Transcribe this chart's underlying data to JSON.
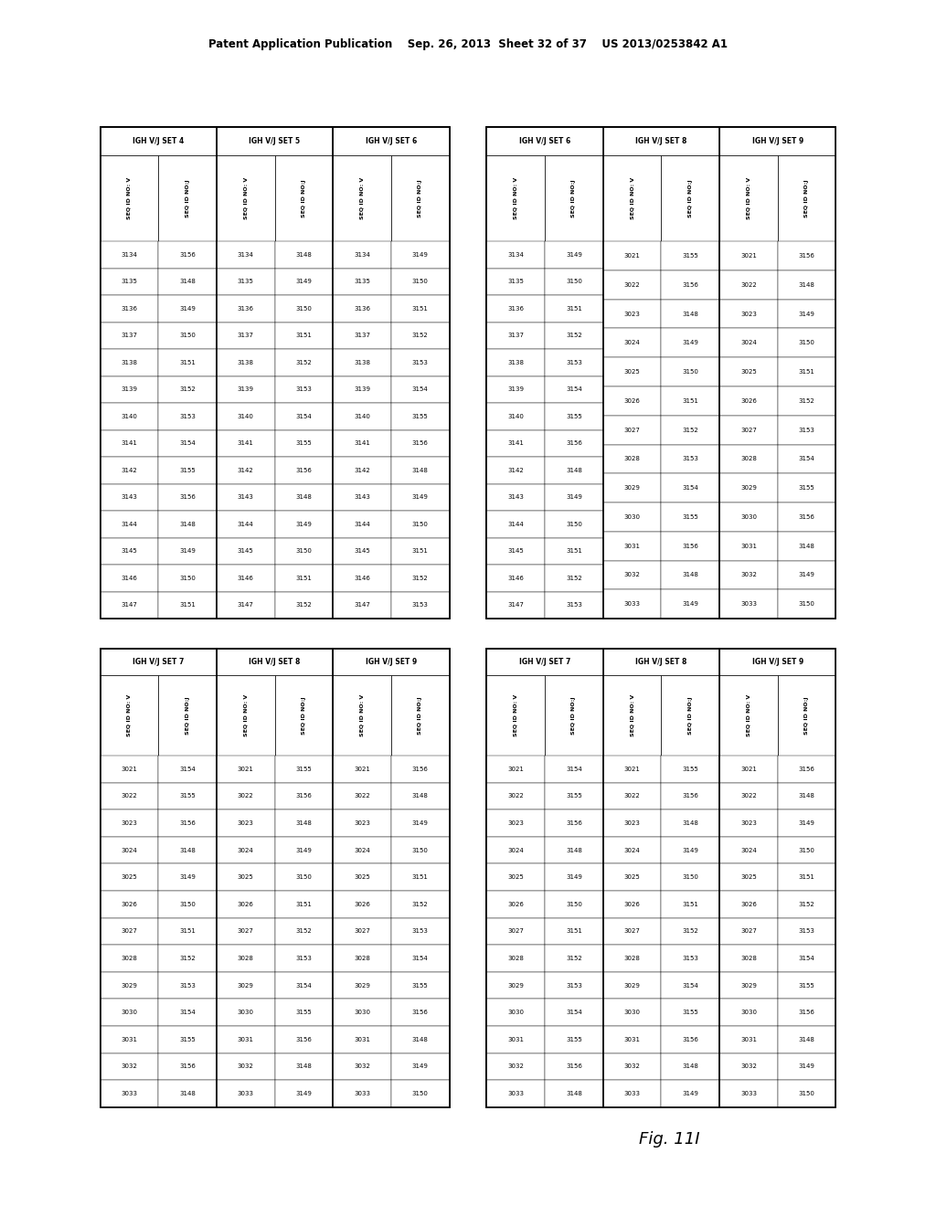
{
  "header_text": "Patent Application Publication    Sep. 26, 2013  Sheet 32 of 37    US 2013/0253842 A1",
  "fig_label": "Fig. 11I",
  "background_color": "#ffffff",
  "tables": [
    {
      "id": "top_left",
      "sets": [
        {
          "title": "IGH V/J SET 4",
          "col1_header": "SEQ ID NO: V",
          "col2_header": "SEQ ID NO:J",
          "col1": [
            3134,
            3135,
            3136,
            3137,
            3138,
            3139,
            3140,
            3141,
            3142,
            3143,
            3144,
            3145,
            3146,
            3147
          ],
          "col2": [
            3156,
            3148,
            3149,
            3150,
            3151,
            3152,
            3153,
            3154,
            3155,
            3156,
            3148,
            3149,
            3150,
            3151
          ]
        },
        {
          "title": "IGH V/J SET 5",
          "col1_header": "SEQ ID NO: V",
          "col2_header": "SEQ ID NO:J",
          "col1": [
            3134,
            3135,
            3136,
            3137,
            3138,
            3139,
            3140,
            3141,
            3142,
            3143,
            3144,
            3145,
            3146,
            3147
          ],
          "col2": [
            3148,
            3149,
            3150,
            3151,
            3152,
            3153,
            3154,
            3155,
            3156,
            3148,
            3149,
            3150,
            3151,
            3152
          ]
        },
        {
          "title": "IGH V/J SET 6",
          "col1_header": "SEQ ID NO: V",
          "col2_header": "SEQ ID NO:J",
          "col1": [
            3134,
            3135,
            3136,
            3137,
            3138,
            3139,
            3140,
            3141,
            3142,
            3143,
            3144,
            3145,
            3146,
            3147
          ],
          "col2": [
            3149,
            3150,
            3151,
            3152,
            3153,
            3154,
            3155,
            3156,
            3148,
            3149,
            3150,
            3151,
            3152,
            3153
          ]
        }
      ],
      "xl": 0.107,
      "yt": 0.895,
      "xr": 0.48,
      "yb": 0.487
    },
    {
      "id": "top_right",
      "sets": [
        {
          "title": "IGH V/J SET 6",
          "col1_header": "SEQ ID NO: V",
          "col2_header": "SEQ ID NO:J",
          "col1": [
            3134,
            3135,
            3136,
            3137,
            3138,
            3139,
            3140,
            3141,
            3142,
            3143,
            3144,
            3145,
            3146,
            3147
          ],
          "col2": [
            3149,
            3150,
            3151,
            3152,
            3153,
            3154,
            3155,
            3156,
            3148,
            3149,
            3150,
            3151,
            3152,
            3153
          ]
        },
        {
          "title": "IGH V/J SET 8",
          "col1_header": "SEQ ID NO: V",
          "col2_header": "SEQ ID NO:J",
          "col1": [
            3021,
            3022,
            3023,
            3024,
            3025,
            3026,
            3027,
            3028,
            3029,
            3030,
            3031,
            3032,
            3033
          ],
          "col2": [
            3155,
            3156,
            3148,
            3149,
            3150,
            3151,
            3152,
            3153,
            3154,
            3155,
            3156,
            3148,
            3149
          ]
        },
        {
          "title": "IGH V/J SET 9",
          "col1_header": "SEQ ID NO: V",
          "col2_header": "SEQ ID NO:J",
          "col1": [
            3021,
            3022,
            3023,
            3024,
            3025,
            3026,
            3027,
            3028,
            3029,
            3030,
            3031,
            3032,
            3033
          ],
          "col2": [
            3156,
            3148,
            3149,
            3150,
            3151,
            3152,
            3153,
            3154,
            3155,
            3156,
            3148,
            3149,
            3150
          ]
        }
      ],
      "xl": 0.52,
      "yt": 0.895,
      "xr": 0.893,
      "yb": 0.487
    },
    {
      "id": "bottom_left",
      "sets": [
        {
          "title": "IGH V/J SET 7",
          "col1_header": "SEQ ID NO: V",
          "col2_header": "SEQ ID NO:J",
          "col1": [
            3021,
            3022,
            3023,
            3024,
            3025,
            3026,
            3027,
            3028,
            3029,
            3030,
            3031,
            3032,
            3033
          ],
          "col2": [
            3154,
            3155,
            3156,
            3148,
            3149,
            3150,
            3151,
            3152,
            3153,
            3154,
            3155,
            3156,
            3148
          ]
        },
        {
          "title": "IGH V/J SET 8",
          "col1_header": "SEQ ID NO: V",
          "col2_header": "SEQ ID NO:J",
          "col1": [
            3021,
            3022,
            3023,
            3024,
            3025,
            3026,
            3027,
            3028,
            3029,
            3030,
            3031,
            3032,
            3033
          ],
          "col2": [
            3155,
            3156,
            3148,
            3149,
            3150,
            3151,
            3152,
            3153,
            3154,
            3155,
            3156,
            3148,
            3149
          ]
        },
        {
          "title": "IGH V/J SET 9",
          "col1_header": "SEQ ID NO: V",
          "col2_header": "SEQ ID NO:J",
          "col1": [
            3021,
            3022,
            3023,
            3024,
            3025,
            3026,
            3027,
            3028,
            3029,
            3030,
            3031,
            3032,
            3033
          ],
          "col2": [
            3156,
            3148,
            3149,
            3150,
            3151,
            3152,
            3153,
            3154,
            3155,
            3156,
            3148,
            3149,
            3150
          ]
        }
      ],
      "xl": 0.107,
      "yt": 0.462,
      "xr": 0.48,
      "yb": 0.082
    },
    {
      "id": "bottom_right",
      "sets": [
        {
          "title": "IGH V/J SET 7",
          "col1_header": "SEQ ID NO: V",
          "col2_header": "SEQ ID NO:J",
          "col1": [
            3021,
            3022,
            3023,
            3024,
            3025,
            3026,
            3027,
            3028,
            3029,
            3030,
            3031,
            3032,
            3033
          ],
          "col2": [
            3154,
            3155,
            3156,
            3148,
            3149,
            3150,
            3151,
            3152,
            3153,
            3154,
            3155,
            3156,
            3148
          ]
        },
        {
          "title": "IGH V/J SET 8",
          "col1_header": "SEQ ID NO: V",
          "col2_header": "SEQ ID NO:J",
          "col1": [
            3021,
            3022,
            3023,
            3024,
            3025,
            3026,
            3027,
            3028,
            3029,
            3030,
            3031,
            3032,
            3033
          ],
          "col2": [
            3155,
            3156,
            3148,
            3149,
            3150,
            3151,
            3152,
            3153,
            3154,
            3155,
            3156,
            3148,
            3149
          ]
        },
        {
          "title": "IGH V/J SET 9",
          "col1_header": "SEQ ID NO: V",
          "col2_header": "SEQ ID NO:J",
          "col1": [
            3021,
            3022,
            3023,
            3024,
            3025,
            3026,
            3027,
            3028,
            3029,
            3030,
            3031,
            3032,
            3033
          ],
          "col2": [
            3156,
            3148,
            3149,
            3150,
            3151,
            3152,
            3153,
            3154,
            3155,
            3156,
            3148,
            3149,
            3150
          ]
        }
      ],
      "xl": 0.52,
      "yt": 0.462,
      "xr": 0.893,
      "yb": 0.082
    }
  ]
}
